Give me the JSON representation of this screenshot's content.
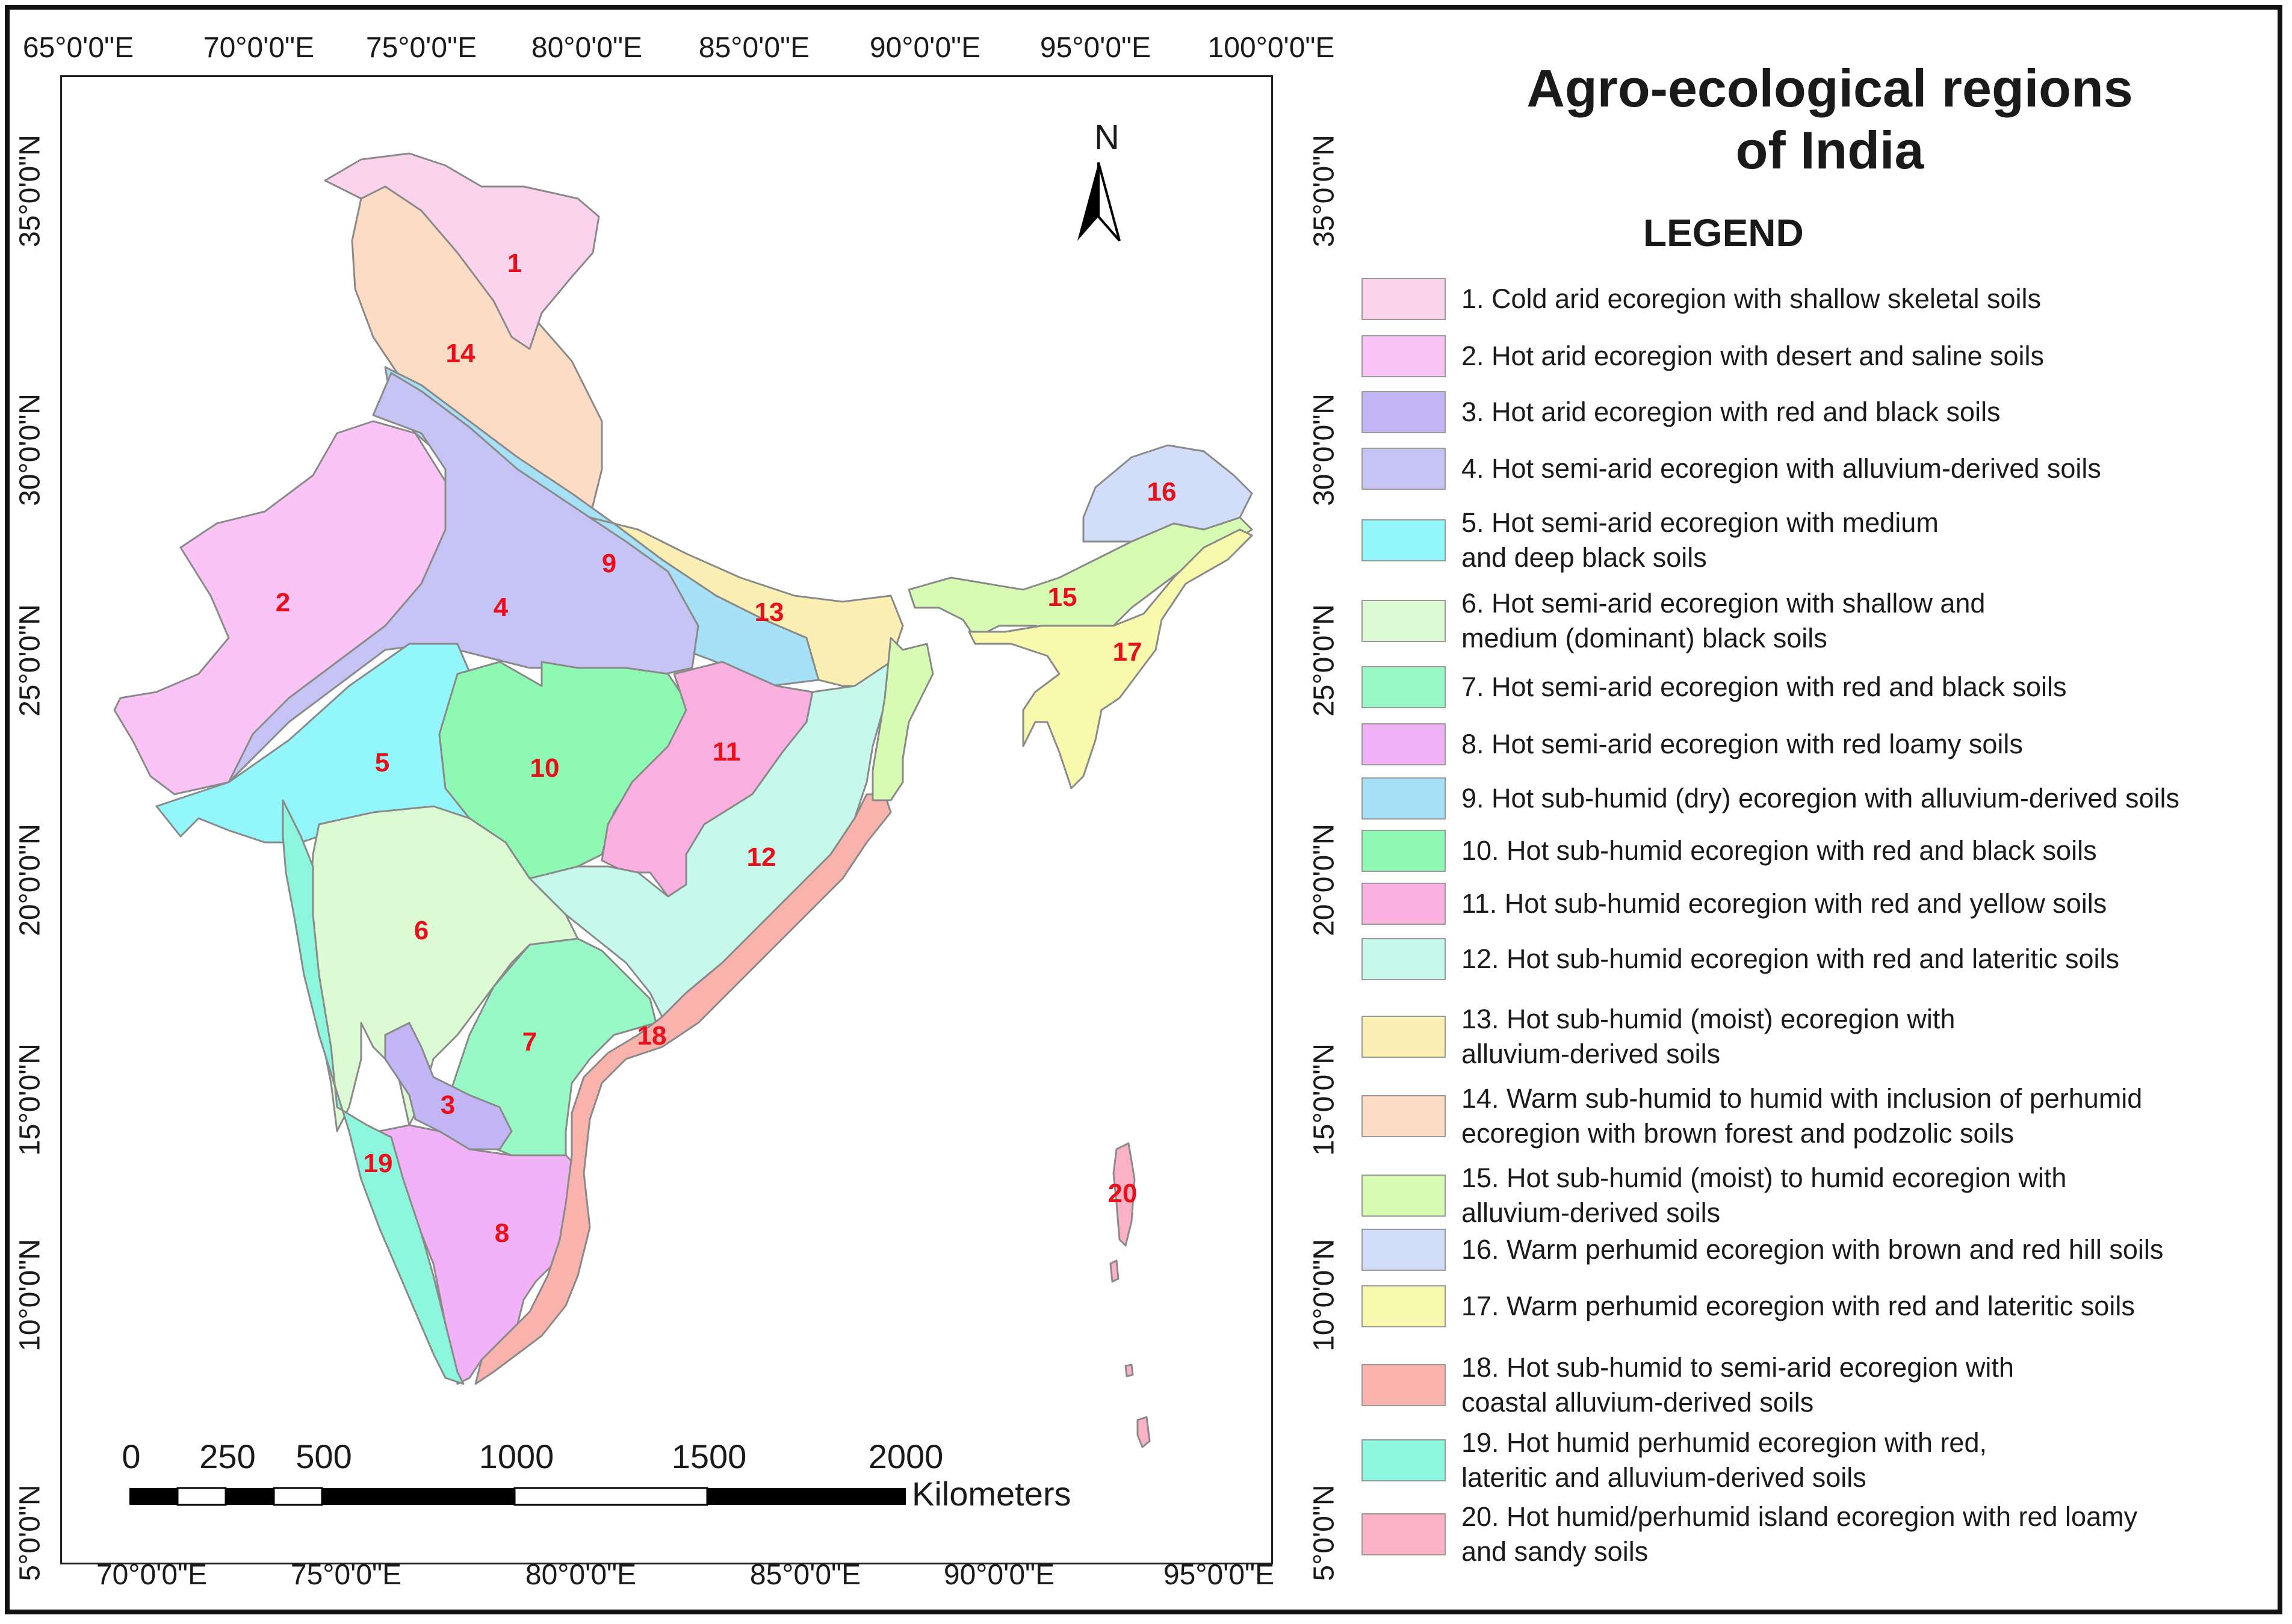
{
  "title": "Agro-ecological regions\nof India",
  "legend_heading": "LEGEND",
  "north_label": "N",
  "scale": {
    "numbers": [
      "0",
      "250",
      "500",
      "1000",
      "1500",
      "2000"
    ],
    "unit": "Kilometers"
  },
  "axis_ticks": {
    "top": [
      "65°0'0\"E",
      "70°0'0\"E",
      "75°0'0\"E",
      "80°0'0\"E",
      "85°0'0\"E",
      "90°0'0\"E",
      "95°0'0\"E",
      "100°0'0\"E"
    ],
    "bottom": [
      "70°0'0\"E",
      "75°0'0\"E",
      "80°0'0\"E",
      "85°0'0\"E",
      "90°0'0\"E",
      "95°0'0\"E"
    ],
    "left": [
      "35°0'0\"N",
      "30°0'0\"N",
      "25°0'0\"N",
      "20°0'0\"N",
      "15°0'0\"N",
      "10°0'0\"N",
      "5°0'0\"N"
    ],
    "right": [
      "35°0'0\"N",
      "30°0'0\"N",
      "25°0'0\"N",
      "20°0'0\"N",
      "15°0'0\"N",
      "10°0'0\"N",
      "5°0'0\"N"
    ]
  },
  "legend": [
    {
      "text": "1. Cold arid ecoregion with shallow skeletal soils",
      "color": "#fcd3ec"
    },
    {
      "text": "2. Hot arid ecoregion with desert and saline soils",
      "color": "#fbc4f7"
    },
    {
      "text": "3. Hot arid ecoregion with red and black soils",
      "color": "#c3b6f7"
    },
    {
      "text": "4. Hot semi-arid ecoregion with alluvium-derived soils",
      "color": "#c6c3f5"
    },
    {
      "text": "5. Hot semi-arid ecoregion with medium\n    and deep black soils",
      "color": "#93f6fa"
    },
    {
      "text": "6. Hot semi-arid ecoregion with shallow and\n    medium (dominant) black soils",
      "color": "#dcfad3"
    },
    {
      "text": "7. Hot semi-arid ecoregion with red and black soils",
      "color": "#98f9c6"
    },
    {
      "text": "8. Hot semi-arid ecoregion with red loamy soils",
      "color": "#f2b2f8"
    },
    {
      "text": "9. Hot sub-humid (dry) ecoregion with alluvium-derived soils",
      "color": "#a6e1f7"
    },
    {
      "text": "10. Hot sub-humid ecoregion with red and black soils",
      "color": "#8ef9b3"
    },
    {
      "text": "11. Hot sub-humid ecoregion with red and yellow soils",
      "color": "#fab0e0"
    },
    {
      "text": "12. Hot sub-humid ecoregion with red and lateritic soils",
      "color": "#c6f9ec"
    },
    {
      "text": "13. Hot sub-humid (moist) ecoregion with\n     alluvium-derived soils",
      "color": "#fbefb4"
    },
    {
      "text": "14. Warm sub-humid to humid with inclusion of perhumid\n     ecoregion with brown forest and podzolic soils",
      "color": "#fcdcc5"
    },
    {
      "text": "15. Hot sub-humid (moist) to humid ecoregion with\n     alluvium-derived soils",
      "color": "#d8fbb4"
    },
    {
      "text": "16. Warm perhumid ecoregion with brown and red hill soils",
      "color": "#d2def9"
    },
    {
      "text": "17. Warm perhumid ecoregion with red and lateritic soils",
      "color": "#f8f9ac"
    },
    {
      "text": "18. Hot sub-humid to semi-arid ecoregion with\n     coastal alluvium-derived soils",
      "color": "#f9b2ac"
    },
    {
      "text": "19. Hot humid perhumid ecoregion with red,\n     lateritic and alluvium-derived soils",
      "color": "#8cf6df"
    },
    {
      "text": "20. Hot humid/perhumid island ecoregion with red loamy\n     and sandy soils",
      "color": "#fbb2c7"
    }
  ],
  "region_labels": [
    "1",
    "2",
    "3",
    "4",
    "5",
    "6",
    "7",
    "8",
    "9",
    "10",
    "11",
    "12",
    "13",
    "14",
    "15",
    "16",
    "17",
    "18",
    "19",
    "20"
  ]
}
